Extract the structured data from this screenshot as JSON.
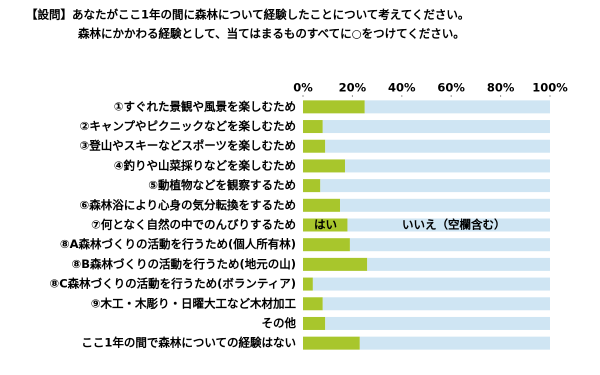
{
  "chart_data": {
    "type": "stacked-bar-horizontal",
    "title": "【設問】あなたがここ1年の間に森林について経験したことについて考えてください。",
    "subtitle": "森林にかかわる経験として、当てはまるものすべてに○をつけてください。",
    "categories": [
      "①すぐれた景観や風景を楽しむため",
      "②キャンプやピクニックなどを楽しむため",
      "③登山やスキーなどスポーツを楽しむため",
      "④釣りや山菜採りなどを楽しむため",
      "⑤動植物などを観察するため",
      "⑥森林浴により心身の気分転換をするため",
      "⑦何となく自然の中でのんびりするため",
      "⑧A森林づくりの活動を行うため(個人所有林)",
      "⑧B森林づくりの活動を行うため(地元の山)",
      "⑧C森林づくりの活動を行うため(ボランティア)",
      "⑨木工・木彫り・日曜大工など木材加工",
      "その他",
      "ここ1年の間で森林についての経験はない"
    ],
    "series": [
      {
        "name": "はい",
        "color": "#a8c62c",
        "values": [
          25,
          8,
          9,
          17,
          7,
          15,
          18,
          19,
          26,
          4,
          8,
          9,
          23
        ]
      },
      {
        "name": "いいえ（空欄含む）",
        "color": "#cfe5f3",
        "values": [
          75,
          92,
          91,
          83,
          93,
          85,
          82,
          81,
          74,
          96,
          92,
          91,
          77
        ]
      }
    ],
    "xlim": [
      0,
      100
    ],
    "xticks": [
      {
        "value": 0,
        "label": "0%"
      },
      {
        "value": 20,
        "label": "20%"
      },
      {
        "value": 40,
        "label": "40%"
      },
      {
        "value": 60,
        "label": "60%"
      },
      {
        "value": 80,
        "label": "80%"
      },
      {
        "value": 100,
        "label": "100%"
      }
    ]
  }
}
